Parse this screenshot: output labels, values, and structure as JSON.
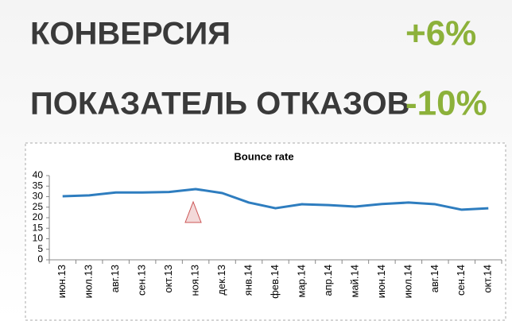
{
  "metrics": [
    {
      "label": "КОНВЕРСИЯ",
      "value": "+6%"
    },
    {
      "label": "ПОКАЗАТЕЛЬ ОТКАЗОВ",
      "value": "-10%"
    }
  ],
  "chart_data": {
    "type": "line",
    "title": "Bounce rate",
    "categories": [
      "июн.13",
      "июл.13",
      "авг.13",
      "сен.13",
      "окт.13",
      "ноя.13",
      "дек.13",
      "янв.14",
      "фев.14",
      "мар.14",
      "апр.14",
      "май.14",
      "июн.14",
      "июл.14",
      "авг.14",
      "сен.14",
      "окт.14"
    ],
    "series": [
      {
        "name": "Bounce rate",
        "color": "#2e7dbf",
        "values": [
          30.2,
          30.6,
          32,
          32,
          32.2,
          33.6,
          31.7,
          27.2,
          24.5,
          26.4,
          26,
          25.3,
          26.5,
          27.2,
          26.4,
          23.8,
          24.5
        ]
      }
    ],
    "ylim": [
      0,
      40
    ],
    "yticks": [
      0,
      5,
      10,
      15,
      20,
      25,
      30,
      35,
      40
    ],
    "grid": false
  }
}
